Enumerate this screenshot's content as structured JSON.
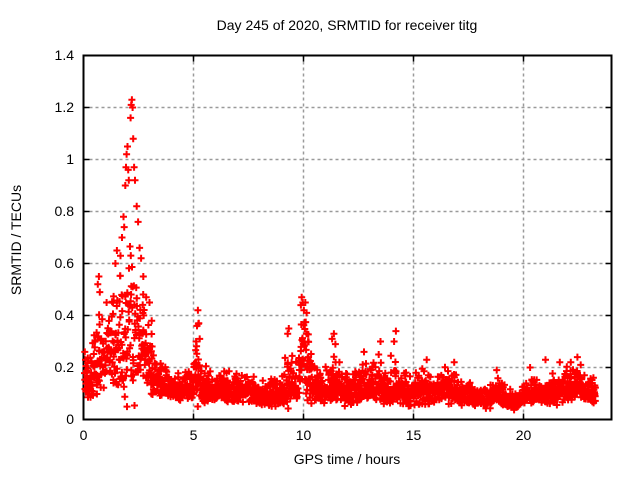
{
  "chart_data": {
    "type": "scatter",
    "title": "Day 245 of 2020, SRMTID for receiver titg",
    "xlabel": "GPS time / hours",
    "ylabel": "SRMTID / TECUs",
    "xlim": [
      0,
      24
    ],
    "ylim": [
      0,
      1.4
    ],
    "xticks": {
      "values": [
        0,
        5,
        10,
        15,
        20
      ],
      "labels": [
        "0",
        "5",
        "10",
        "15",
        "20"
      ]
    },
    "yticks": {
      "values": [
        0,
        0.2,
        0.4,
        0.6,
        0.8,
        1.0,
        1.2,
        1.4
      ],
      "labels": [
        "0",
        "0.2",
        "0.4",
        "0.6",
        "0.8",
        "1",
        "1.2",
        "1.4"
      ]
    },
    "grid": {
      "show": true,
      "color": "#9a9a9a",
      "dash": [
        3,
        3
      ]
    },
    "marker": {
      "shape": "plus",
      "color": "#ff0000",
      "size": 7,
      "stroke_width": 2
    },
    "border_color": "#000000",
    "background": "#ffffff",
    "notable_values": {
      "max_value": 1.23,
      "max_time_hours": 2.2,
      "secondary_peak": {
        "time_hours": 10.0,
        "value": 0.47
      },
      "tertiary_spike": {
        "time_hours": 5.2,
        "value": 0.42
      },
      "baseline_band": [
        0.05,
        0.2
      ],
      "data_end_hours": 23.25
    },
    "series": [
      {
        "name": "SRMTID",
        "sampling": {
          "t_start": 0.05,
          "t_end": 23.28,
          "dt": 0.016,
          "seed": 245
        },
        "envelope_t_mid_hi": [
          [
            0.0,
            0.14,
            0.27
          ],
          [
            0.3,
            0.14,
            0.24
          ],
          [
            0.6,
            0.2,
            0.45
          ],
          [
            0.8,
            0.24,
            0.5
          ],
          [
            1.0,
            0.24,
            0.42
          ],
          [
            1.3,
            0.26,
            0.5
          ],
          [
            1.6,
            0.28,
            0.62
          ],
          [
            1.9,
            0.3,
            0.72
          ],
          [
            2.1,
            0.3,
            0.8
          ],
          [
            2.35,
            0.28,
            0.68
          ],
          [
            2.6,
            0.26,
            0.52
          ],
          [
            2.9,
            0.2,
            0.4
          ],
          [
            3.2,
            0.16,
            0.28
          ],
          [
            3.6,
            0.13,
            0.22
          ],
          [
            4.0,
            0.12,
            0.2
          ],
          [
            4.5,
            0.11,
            0.18
          ],
          [
            5.0,
            0.12,
            0.22
          ],
          [
            5.18,
            0.17,
            0.4
          ],
          [
            5.35,
            0.12,
            0.22
          ],
          [
            5.8,
            0.11,
            0.19
          ],
          [
            6.3,
            0.12,
            0.21
          ],
          [
            6.8,
            0.1,
            0.18
          ],
          [
            7.3,
            0.11,
            0.19
          ],
          [
            7.8,
            0.1,
            0.17
          ],
          [
            8.3,
            0.08,
            0.15
          ],
          [
            8.8,
            0.09,
            0.16
          ],
          [
            9.3,
            0.13,
            0.3
          ],
          [
            9.6,
            0.12,
            0.24
          ],
          [
            9.95,
            0.24,
            0.46
          ],
          [
            10.15,
            0.18,
            0.4
          ],
          [
            10.5,
            0.12,
            0.24
          ],
          [
            10.9,
            0.11,
            0.2
          ],
          [
            11.35,
            0.14,
            0.3
          ],
          [
            11.7,
            0.12,
            0.24
          ],
          [
            12.1,
            0.1,
            0.18
          ],
          [
            12.5,
            0.11,
            0.2
          ],
          [
            12.9,
            0.12,
            0.22
          ],
          [
            13.4,
            0.13,
            0.26
          ],
          [
            13.8,
            0.11,
            0.22
          ],
          [
            14.15,
            0.13,
            0.28
          ],
          [
            14.5,
            0.11,
            0.2
          ],
          [
            15.0,
            0.1,
            0.19
          ],
          [
            15.5,
            0.11,
            0.2
          ],
          [
            16.0,
            0.1,
            0.18
          ],
          [
            16.6,
            0.11,
            0.21
          ],
          [
            17.1,
            0.09,
            0.16
          ],
          [
            17.6,
            0.08,
            0.14
          ],
          [
            18.1,
            0.07,
            0.13
          ],
          [
            18.55,
            0.08,
            0.15
          ],
          [
            18.85,
            0.1,
            0.18
          ],
          [
            19.2,
            0.07,
            0.12
          ],
          [
            19.6,
            0.06,
            0.11
          ],
          [
            20.0,
            0.08,
            0.14
          ],
          [
            20.4,
            0.1,
            0.18
          ],
          [
            20.8,
            0.09,
            0.16
          ],
          [
            21.2,
            0.1,
            0.18
          ],
          [
            21.6,
            0.1,
            0.18
          ],
          [
            22.0,
            0.12,
            0.21
          ],
          [
            22.4,
            0.12,
            0.21
          ],
          [
            22.8,
            0.11,
            0.19
          ],
          [
            23.28,
            0.1,
            0.17
          ]
        ],
        "peak_outliers_xy": [
          [
            0.06,
            0.26
          ],
          [
            0.09,
            0.23
          ],
          [
            0.65,
            0.52
          ],
          [
            0.7,
            0.55
          ],
          [
            0.74,
            0.49
          ],
          [
            1.05,
            0.45
          ],
          [
            1.45,
            0.6
          ],
          [
            1.52,
            0.65
          ],
          [
            1.68,
            0.63
          ],
          [
            1.75,
            0.7
          ],
          [
            1.82,
            0.78
          ],
          [
            1.85,
            0.74
          ],
          [
            1.9,
            0.9
          ],
          [
            1.93,
            0.97
          ],
          [
            1.96,
            1.02
          ],
          [
            2.0,
            1.05
          ],
          [
            2.03,
            0.96
          ],
          [
            2.06,
            0.92
          ],
          [
            2.14,
            1.16
          ],
          [
            2.17,
            1.21
          ],
          [
            2.2,
            1.23
          ],
          [
            2.23,
            1.2
          ],
          [
            2.26,
            1.08
          ],
          [
            2.3,
            0.97
          ],
          [
            2.34,
            0.92
          ],
          [
            2.42,
            0.82
          ],
          [
            2.48,
            0.76
          ],
          [
            2.55,
            0.66
          ],
          [
            2.62,
            0.62
          ],
          [
            2.72,
            0.55
          ],
          [
            2.85,
            0.47
          ],
          [
            3.0,
            0.45
          ],
          [
            3.1,
            0.38
          ],
          [
            5.12,
            0.3
          ],
          [
            5.16,
            0.36
          ],
          [
            5.2,
            0.42
          ],
          [
            5.24,
            0.37
          ],
          [
            5.28,
            0.31
          ],
          [
            9.28,
            0.33
          ],
          [
            9.33,
            0.35
          ],
          [
            9.88,
            0.44
          ],
          [
            9.92,
            0.47
          ],
          [
            9.97,
            0.45
          ],
          [
            10.02,
            0.42
          ],
          [
            10.08,
            0.45
          ],
          [
            10.14,
            0.41
          ],
          [
            11.3,
            0.31
          ],
          [
            11.38,
            0.33
          ],
          [
            11.45,
            0.29
          ],
          [
            12.75,
            0.26
          ],
          [
            13.42,
            0.25
          ],
          [
            13.5,
            0.3
          ],
          [
            14.12,
            0.3
          ],
          [
            14.2,
            0.34
          ],
          [
            15.6,
            0.23
          ],
          [
            16.85,
            0.22
          ],
          [
            18.78,
            0.19
          ],
          [
            20.3,
            0.2
          ],
          [
            21.0,
            0.23
          ],
          [
            21.65,
            0.22
          ],
          [
            22.15,
            0.22
          ],
          [
            22.45,
            0.24
          ],
          [
            22.6,
            0.21
          ]
        ]
      }
    ]
  }
}
